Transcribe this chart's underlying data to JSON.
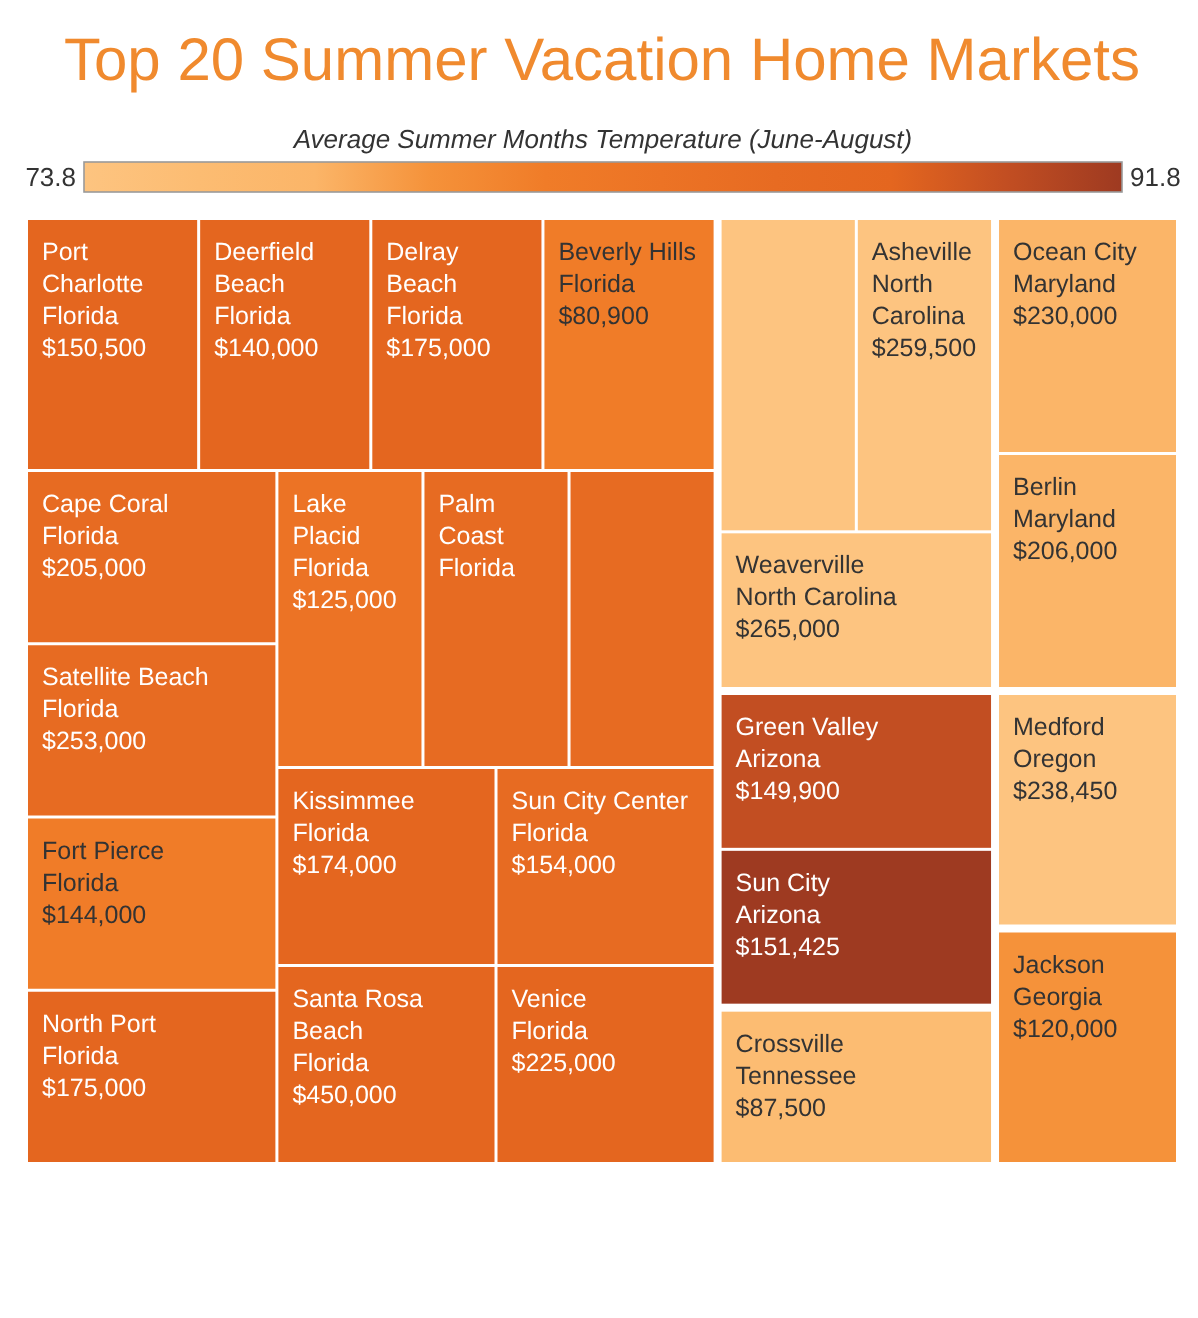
{
  "chart_data": {
    "type": "other",
    "title": "Top 20 Summer Vacation Home Markets",
    "clabel": "Average Summer Months Temperature (June-August)",
    "annotations": [
      "73.8",
      "91.8"
    ],
    "categories": [
      "Port Charlotte",
      "Deerfield Beach",
      "Delray Beach",
      "Beverly Hills",
      "Cape Coral",
      "Satellite Beach",
      "Fort Pierce",
      "North Port",
      "Lake Placid",
      "Palm Coast",
      null,
      "Kissimmee",
      "Santa Rosa Beach",
      "Sun City Center",
      "Venice",
      null,
      "Asheville",
      "Weaverville",
      "Ocean City",
      "Berlin",
      "Green Valley",
      "Sun City",
      "Crossville",
      "Medford",
      "Jackson"
    ],
    "series": [
      {
        "name": "Florida",
        "values": [
          150500,
          140000,
          175000,
          80900,
          205000,
          253000,
          144000,
          175000,
          125000,
          null,
          null,
          174000,
          450000,
          154000,
          225000,
          null,
          null,
          null,
          null,
          null,
          null,
          null,
          null,
          null,
          null
        ],
        "value_labels": [
          "$150,500",
          "$140,000",
          "$175,000",
          "$80,900",
          "$205,000",
          "$253,000",
          "$144,000",
          "$175,000",
          "$125,000",
          null,
          null,
          "$174,000",
          "$450,000",
          "$154,000",
          "$225,000",
          null,
          null,
          null,
          null,
          null,
          null,
          null,
          null,
          null,
          null
        ],
        "colors": [
          "#e4661f",
          "#e4661f",
          "#e4661f",
          "#f07c28",
          "#e76b22",
          "#e76b22",
          "#f07c28",
          "#e4661f",
          "#ec7325",
          "#e76b22",
          "#e76b22",
          "#e4661f",
          "#e4661f",
          "#e76b22",
          "#e4661f",
          null,
          null,
          null,
          null,
          null,
          null,
          null,
          null,
          null,
          null
        ]
      },
      {
        "name": "North Carolina",
        "values": [
          null,
          null,
          null,
          null,
          null,
          null,
          null,
          null,
          null,
          null,
          null,
          null,
          null,
          null,
          null,
          null,
          259500,
          265000,
          null,
          null,
          null,
          null,
          null,
          null,
          null
        ],
        "value_labels": [
          null,
          null,
          null,
          null,
          null,
          null,
          null,
          null,
          null,
          null,
          null,
          null,
          null,
          null,
          null,
          null,
          "$259,500",
          "$265,000",
          null,
          null,
          null,
          null,
          null,
          null,
          null
        ],
        "colors": [
          null,
          null,
          null,
          null,
          null,
          null,
          null,
          null,
          null,
          null,
          null,
          null,
          null,
          null,
          null,
          "#fdc480",
          "#fdc480",
          "#fdc480",
          null,
          null,
          null,
          null,
          null,
          null,
          null
        ]
      },
      {
        "name": "Maryland",
        "values": [
          null,
          null,
          null,
          null,
          null,
          null,
          null,
          null,
          null,
          null,
          null,
          null,
          null,
          null,
          null,
          null,
          null,
          null,
          230000,
          206000,
          null,
          null,
          null,
          null,
          null
        ],
        "value_labels": [
          null,
          null,
          null,
          null,
          null,
          null,
          null,
          null,
          null,
          null,
          null,
          null,
          null,
          null,
          null,
          null,
          null,
          null,
          "$230,000",
          "$206,000",
          null,
          null,
          null,
          null,
          null
        ],
        "colors": [
          null,
          null,
          null,
          null,
          null,
          null,
          null,
          null,
          null,
          null,
          null,
          null,
          null,
          null,
          null,
          null,
          null,
          null,
          "#fbb568",
          "#fbb568",
          null,
          null,
          null,
          null,
          null
        ]
      },
      {
        "name": "Arizona",
        "values": [
          null,
          null,
          null,
          null,
          null,
          null,
          null,
          null,
          null,
          null,
          null,
          null,
          null,
          null,
          null,
          null,
          null,
          null,
          null,
          null,
          149900,
          151425,
          null,
          null,
          null
        ],
        "value_labels": [
          null,
          null,
          null,
          null,
          null,
          null,
          null,
          null,
          null,
          null,
          null,
          null,
          null,
          null,
          null,
          null,
          null,
          null,
          null,
          null,
          "$149,900",
          "$151,425",
          null,
          null,
          null
        ],
        "colors": [
          null,
          null,
          null,
          null,
          null,
          null,
          null,
          null,
          null,
          null,
          null,
          null,
          null,
          null,
          null,
          null,
          null,
          null,
          null,
          null,
          "#c24e22",
          "#9e3a21",
          null,
          null,
          null
        ]
      },
      {
        "name": "Tennessee",
        "values": [
          null,
          null,
          null,
          null,
          null,
          null,
          null,
          null,
          null,
          null,
          null,
          null,
          null,
          null,
          null,
          null,
          null,
          null,
          null,
          null,
          null,
          null,
          87500,
          null,
          null
        ],
        "value_labels": [
          null,
          null,
          null,
          null,
          null,
          null,
          null,
          null,
          null,
          null,
          null,
          null,
          null,
          null,
          null,
          null,
          null,
          null,
          null,
          null,
          null,
          null,
          "$87,500",
          null,
          null
        ],
        "colors": [
          null,
          null,
          null,
          null,
          null,
          null,
          null,
          null,
          null,
          null,
          null,
          null,
          null,
          null,
          null,
          null,
          null,
          null,
          null,
          null,
          null,
          null,
          "#fcbc72",
          null,
          null
        ]
      },
      {
        "name": "Oregon",
        "values": [
          null,
          null,
          null,
          null,
          null,
          null,
          null,
          null,
          null,
          null,
          null,
          null,
          null,
          null,
          null,
          null,
          null,
          null,
          null,
          null,
          null,
          null,
          null,
          238450,
          null
        ],
        "value_labels": [
          null,
          null,
          null,
          null,
          null,
          null,
          null,
          null,
          null,
          null,
          null,
          null,
          null,
          null,
          null,
          null,
          null,
          null,
          null,
          null,
          null,
          null,
          null,
          "$238,450",
          null
        ],
        "colors": [
          null,
          null,
          null,
          null,
          null,
          null,
          null,
          null,
          null,
          null,
          null,
          null,
          null,
          null,
          null,
          null,
          null,
          null,
          null,
          null,
          null,
          null,
          null,
          "#fdc480",
          null
        ]
      },
      {
        "name": "Georgia",
        "values": [
          null,
          null,
          null,
          null,
          null,
          null,
          null,
          null,
          null,
          null,
          null,
          null,
          null,
          null,
          null,
          null,
          null,
          null,
          null,
          null,
          null,
          null,
          null,
          null,
          120000
        ],
        "value_labels": [
          null,
          null,
          null,
          null,
          null,
          null,
          null,
          null,
          null,
          null,
          null,
          null,
          null,
          null,
          null,
          null,
          null,
          null,
          null,
          null,
          null,
          null,
          null,
          null,
          "$120,000"
        ],
        "colors": [
          null,
          null,
          null,
          null,
          null,
          null,
          null,
          null,
          null,
          null,
          null,
          null,
          null,
          null,
          null,
          null,
          null,
          null,
          null,
          null,
          null,
          null,
          null,
          null,
          "#f5923a"
        ]
      }
    ]
  }
}
